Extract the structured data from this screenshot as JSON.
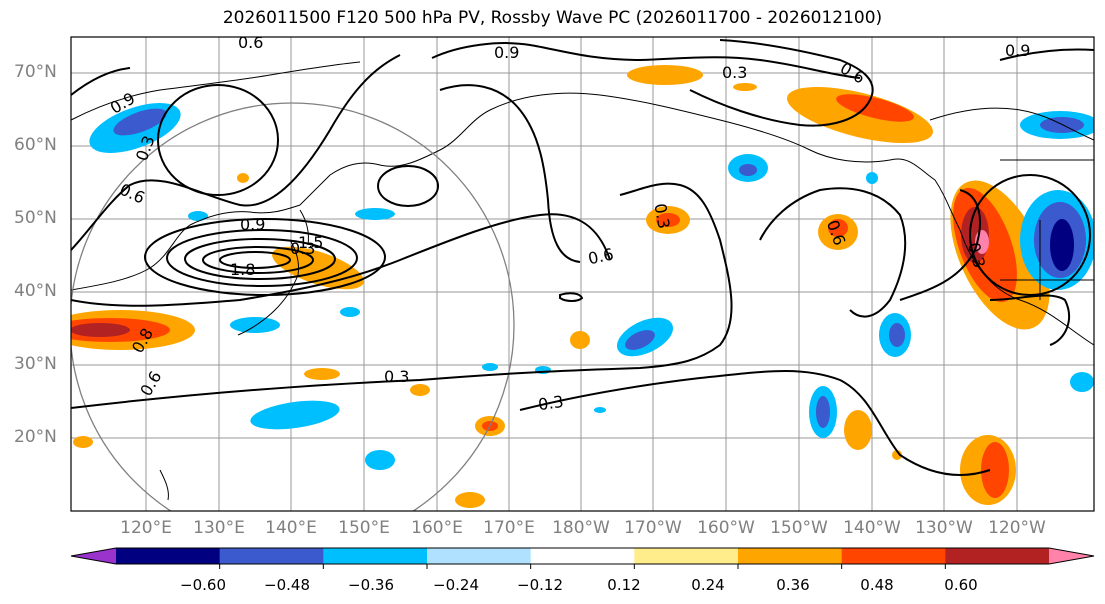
{
  "title": "2026011500 F120 500 hPa PV, Rossby Wave PC (2026011700 - 2026012100)",
  "lat_labels": [
    "70°N",
    "60°N",
    "50°N",
    "40°N",
    "30°N",
    "20°N"
  ],
  "lon_labels": [
    "120°E",
    "130°E",
    "140°E",
    "150°E",
    "160°E",
    "170°E",
    "180°W",
    "170°W",
    "160°W",
    "150°W",
    "140°W",
    "130°W",
    "120°W"
  ],
  "colorbar": {
    "colors": [
      "#9933cc",
      "#000080",
      "#3a5acd",
      "#00bfff",
      "#b0e2ff",
      "#ffffff",
      "#ffec8b",
      "#ffa500",
      "#ff4500",
      "#b22222",
      "#ff82ab"
    ],
    "tick_labels": [
      "−0.60",
      "−0.48",
      "−0.36",
      "−0.24",
      "−0.12",
      "0.12",
      "0.24",
      "0.36",
      "0.48",
      "0.60"
    ]
  },
  "contour_labels": [
    "0.9",
    "0.9",
    "0.9",
    "0.9",
    "0.6",
    "0.6",
    "0.6",
    "0.6",
    "0.6",
    "0.3",
    "0.3",
    "0.3",
    "0.3",
    "0.3",
    "0.3",
    "0.3",
    "1.8",
    "1.5",
    "0.8",
    "0.6"
  ],
  "legend_icons": [
    "projection-circle-icon"
  ]
}
